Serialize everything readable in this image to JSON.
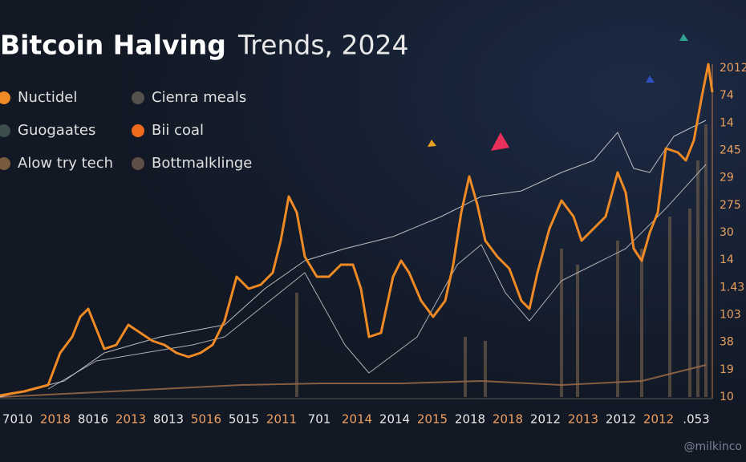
{
  "chart_data": {
    "type": "line",
    "title_bold": "Bitcoin Halving",
    "title_light": "Trends, 2024",
    "watermark": "@milkinco",
    "x_axis_labels": [
      "7010",
      "2018",
      "8016",
      "2013",
      "8013",
      "5016",
      "5015",
      "2011",
      "701",
      "2014",
      "2014",
      "2015",
      "2018",
      "2018",
      "2012",
      "2013",
      "2012",
      "2012",
      ".053"
    ],
    "y_axis_labels": [
      "2012",
      "74",
      "14",
      "245",
      "29",
      "275",
      "30",
      "14",
      "1.43",
      "103",
      "38",
      "19",
      "10"
    ],
    "xlim": [
      0,
      890
    ],
    "ylim": [
      0,
      415
    ],
    "legend": [
      {
        "name": "Nuctidel",
        "color": "#f08a24"
      },
      {
        "name": "Guogaates",
        "color": "#3c4d4c"
      },
      {
        "name": "Alow try tech",
        "color": "#7a5a3c"
      },
      {
        "name": "Cienra meals",
        "color": "#55514c"
      },
      {
        "name": "Bii coal",
        "color": "#f06a1e"
      },
      {
        "name": "Bottmalklinge",
        "color": "#5e5048"
      }
    ],
    "bars": {
      "color": "#6b5a48",
      "x": [
        370,
        580,
        605,
        700,
        720,
        770,
        800,
        835,
        860,
        870,
        880
      ],
      "values": [
        130,
        75,
        70,
        185,
        165,
        195,
        185,
        225,
        235,
        295,
        340
      ]
    },
    "series": [
      {
        "name": "Nuctidel",
        "color": "#f08a24",
        "width": 3,
        "x": [
          0,
          30,
          60,
          75,
          90,
          100,
          110,
          120,
          130,
          145,
          160,
          175,
          190,
          205,
          220,
          235,
          250,
          265,
          280,
          295,
          310,
          325,
          340,
          350,
          360,
          370,
          380,
          395,
          410,
          425,
          440,
          450,
          460,
          475,
          490,
          500,
          510,
          525,
          540,
          555,
          565,
          575,
          585,
          595,
          605,
          620,
          635,
          650,
          660,
          670,
          685,
          700,
          715,
          725,
          740,
          755,
          770,
          780,
          790,
          800,
          810,
          820,
          830,
          845,
          855,
          865,
          875,
          883,
          888
        ],
        "values": [
          2,
          7,
          15,
          55,
          75,
          100,
          110,
          85,
          60,
          65,
          90,
          80,
          70,
          65,
          55,
          50,
          55,
          65,
          95,
          150,
          135,
          140,
          155,
          195,
          250,
          230,
          175,
          150,
          150,
          165,
          165,
          135,
          75,
          80,
          150,
          170,
          155,
          120,
          100,
          120,
          165,
          230,
          275,
          240,
          195,
          175,
          160,
          120,
          110,
          155,
          210,
          245,
          225,
          195,
          210,
          225,
          280,
          255,
          185,
          170,
          205,
          230,
          310,
          305,
          295,
          320,
          375,
          415,
          380
        ]
      },
      {
        "name": "Cienra meals",
        "color": "#d8d8d8",
        "width": 1,
        "x": [
          0,
          80,
          130,
          200,
          280,
          330,
          380,
          430,
          490,
          550,
          600,
          650,
          700,
          740,
          770,
          790,
          810,
          840,
          880
        ],
        "values": [
          0,
          20,
          55,
          75,
          90,
          135,
          170,
          185,
          200,
          225,
          250,
          257,
          280,
          295,
          330,
          285,
          280,
          325,
          345
        ]
      },
      {
        "name": "Guogaates",
        "color": "#c8c8c8",
        "width": 1,
        "x": [
          60,
          120,
          180,
          240,
          280,
          330,
          380,
          430,
          460,
          520,
          570,
          600,
          630,
          660,
          700,
          740,
          780,
          830,
          880
        ],
        "values": [
          10,
          45,
          55,
          65,
          75,
          115,
          155,
          65,
          30,
          75,
          165,
          190,
          130,
          95,
          145,
          165,
          185,
          235,
          290
        ]
      },
      {
        "name": "Alow try tech",
        "color": "#9a6a48",
        "width": 2,
        "x": [
          0,
          100,
          200,
          300,
          400,
          500,
          600,
          700,
          800,
          880
        ],
        "values": [
          0,
          5,
          10,
          15,
          17,
          17,
          20,
          15,
          20,
          40
        ]
      }
    ]
  }
}
